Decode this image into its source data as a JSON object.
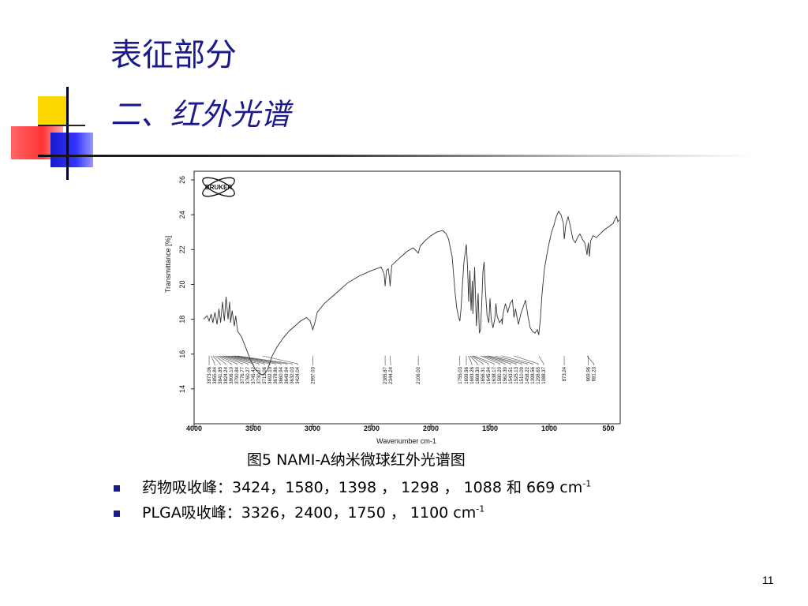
{
  "slide": {
    "title": "表征部分",
    "subtitle": "二、红外光谱",
    "caption": "图5  NAMI-A纳米微球红外光谱图",
    "bullets": [
      {
        "text": "药物吸收峰：3424，1580，1398 ， 1298 ， 1088 和 669 cm",
        "sup": "-1"
      },
      {
        "text": "PLGA吸收峰：3326，2400，1750 ， 1100 cm",
        "sup": "-1"
      }
    ],
    "page_number": "11"
  },
  "colors": {
    "title": "#1a1a8c",
    "bullet": "#1a1a8c",
    "line": "#333333"
  },
  "chart_data": {
    "type": "line",
    "logo_text": "BRUKER",
    "xlabel": "Wavenumber cm-1",
    "ylabel": "Transmittance [%]",
    "xlim": [
      4000,
      400
    ],
    "ylim": [
      12,
      26.5
    ],
    "x_ticks": [
      4000,
      3500,
      3000,
      2500,
      2000,
      1500,
      1000,
      500
    ],
    "y_ticks": [
      14,
      16,
      18,
      20,
      22,
      24,
      26
    ],
    "series": [
      {
        "x": [
          3920,
          3890,
          3873,
          3856,
          3841,
          3824,
          3806,
          3790,
          3776,
          3760,
          3745,
          3730,
          3713,
          3700,
          3692,
          3679,
          3660,
          3649,
          3632,
          3600,
          3560,
          3520,
          3480,
          3450,
          3424,
          3400,
          3380,
          3360,
          3340,
          3300,
          3250,
          3200,
          3150,
          3100,
          3050,
          3020,
          2997,
          2980,
          2960,
          2900,
          2800,
          2700,
          2600,
          2500,
          2420,
          2395,
          2386,
          2375,
          2360,
          2350,
          2344,
          2330,
          2250,
          2200,
          2150,
          2106,
          2090,
          2050,
          2000,
          1950,
          1900,
          1870,
          1850,
          1820,
          1795,
          1780,
          1765,
          1755,
          1745,
          1735,
          1720,
          1700,
          1690,
          1680,
          1670,
          1660,
          1650,
          1645,
          1630,
          1615,
          1600,
          1590,
          1580,
          1570,
          1560,
          1550,
          1540,
          1525,
          1510,
          1500,
          1490,
          1475,
          1460,
          1450,
          1440,
          1420,
          1400,
          1398,
          1390,
          1370,
          1350,
          1330,
          1310,
          1298,
          1285,
          1260,
          1240,
          1220,
          1200,
          1180,
          1160,
          1140,
          1120,
          1100,
          1088,
          1075,
          1060,
          1040,
          1020,
          1000,
          980,
          960,
          940,
          920,
          900,
          880,
          873,
          860,
          840,
          820,
          800,
          780,
          760,
          740,
          720,
          700,
          690,
          681,
          669,
          660,
          650,
          630,
          600,
          570,
          540,
          520,
          500,
          480,
          460,
          440,
          430,
          420,
          410
        ],
        "y": [
          18.0,
          18.2,
          17.9,
          18.3,
          17.8,
          18.4,
          17.7,
          18.6,
          17.8,
          19.0,
          17.9,
          19.3,
          18.0,
          19.0,
          17.8,
          18.5,
          17.6,
          18.2,
          17.3,
          17.0,
          16.3,
          15.6,
          15.1,
          14.9,
          14.8,
          14.9,
          15.1,
          15.5,
          15.9,
          16.4,
          16.9,
          17.3,
          17.6,
          17.9,
          18.1,
          17.9,
          17.4,
          17.8,
          18.4,
          18.9,
          19.5,
          20.1,
          20.5,
          20.8,
          21.0,
          20.6,
          19.9,
          20.8,
          20.9,
          20.4,
          19.9,
          21.1,
          21.6,
          21.9,
          22.1,
          21.8,
          22.2,
          22.5,
          22.8,
          23.0,
          23.1,
          22.9,
          22.6,
          21.6,
          19.5,
          18.6,
          18.1,
          17.9,
          18.6,
          19.8,
          21.3,
          22.3,
          21.0,
          19.0,
          20.8,
          18.5,
          20.2,
          18.3,
          21.0,
          17.6,
          19.5,
          17.2,
          17.4,
          18.9,
          20.7,
          21.3,
          19.8,
          18.2,
          17.8,
          19.2,
          18.0,
          17.5,
          18.0,
          18.9,
          18.2,
          17.8,
          18.0,
          17.7,
          18.3,
          18.9,
          18.4,
          18.9,
          19.1,
          18.1,
          18.6,
          17.7,
          18.3,
          18.7,
          19.1,
          18.2,
          17.5,
          17.3,
          17.2,
          17.4,
          17.1,
          18.0,
          19.5,
          20.9,
          21.7,
          22.4,
          23.0,
          23.4,
          23.9,
          24.2,
          24.0,
          23.5,
          22.6,
          23.4,
          23.9,
          23.3,
          22.6,
          22.4,
          22.7,
          22.9,
          22.6,
          22.4,
          22.1,
          21.7,
          22.4,
          21.6,
          22.5,
          22.8,
          22.7,
          22.9,
          23.1,
          23.2,
          23.3,
          23.4,
          23.5,
          23.8,
          23.9,
          23.6,
          23.7
        ]
      }
    ],
    "peak_labels": [
      "3873.06",
      "3855.84",
      "3841.85",
      "3824.24",
      "3806.10",
      "3790.84",
      "3776.77",
      "3760.27",
      "3745.42",
      "3730.27",
      "3713.06",
      "3692.10",
      "3678.86",
      "3660.94",
      "3649.94",
      "3632.03",
      "3424.04",
      "2997.03",
      "2385.87",
      "2344.24",
      "2106.00",
      "1755.03",
      "1699.96",
      "1683.26",
      "1668.30",
      "1656.31",
      "1645.94",
      "1638.17",
      "1580.20",
      "1562.39",
      "1543.51",
      "1525.13",
      "1510.09",
      "1458.22",
      "1398.56",
      "1298.65",
      "1088.37",
      "873.24",
      "669.96",
      "681.23"
    ],
    "peak_positions": [
      3873,
      3856,
      3842,
      3824,
      3806,
      3791,
      3777,
      3760,
      3745,
      3730,
      3713,
      3692,
      3679,
      3661,
      3650,
      3632,
      3424,
      2997,
      2386,
      2344,
      2106,
      1755,
      1700,
      1683,
      1668,
      1656,
      1646,
      1638,
      1580,
      1562,
      1544,
      1525,
      1510,
      1458,
      1399,
      1299,
      1088,
      873,
      670,
      681
    ]
  }
}
